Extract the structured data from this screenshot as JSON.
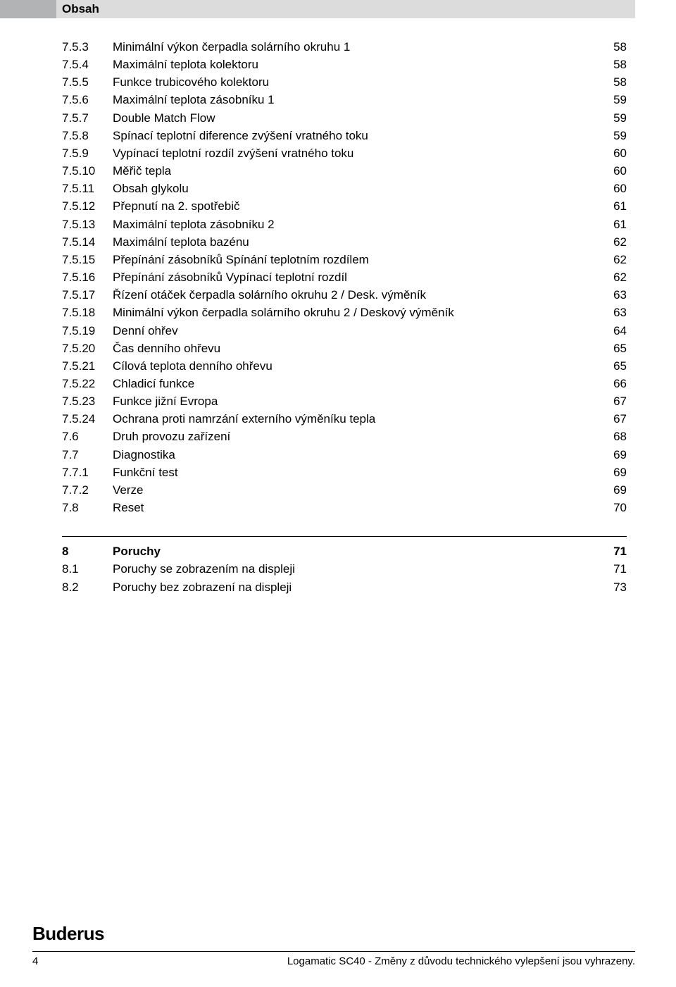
{
  "header": {
    "title": "Obsah"
  },
  "toc_section1": [
    {
      "num": "7.5.3",
      "title": "Minimální výkon čerpadla solárního okruhu 1",
      "page": "58"
    },
    {
      "num": "7.5.4",
      "title": "Maximální teplota kolektoru",
      "page": "58"
    },
    {
      "num": "7.5.5",
      "title": "Funkce trubicového kolektoru",
      "page": "58"
    },
    {
      "num": "7.5.6",
      "title": "Maximální teplota zásobníku 1",
      "page": "59"
    },
    {
      "num": "7.5.7",
      "title": "Double Match Flow",
      "page": "59"
    },
    {
      "num": "7.5.8",
      "title": "Spínací teplotní diference zvýšení vratného toku",
      "page": "59"
    },
    {
      "num": "7.5.9",
      "title": "Vypínací teplotní rozdíl zvýšení vratného toku",
      "page": "60"
    },
    {
      "num": "7.5.10",
      "title": "Měřič tepla",
      "page": "60"
    },
    {
      "num": "7.5.11",
      "title": "Obsah glykolu",
      "page": "60"
    },
    {
      "num": "7.5.12",
      "title": "Přepnutí na 2. spotřebič",
      "page": "61"
    },
    {
      "num": "7.5.13",
      "title": "Maximální teplota zásobníku 2",
      "page": "61"
    },
    {
      "num": "7.5.14",
      "title": "Maximální teplota bazénu",
      "page": "62"
    },
    {
      "num": "7.5.15",
      "title": "Přepínání zásobníků Spínání teplotním rozdílem",
      "page": "62"
    },
    {
      "num": "7.5.16",
      "title": "Přepínání zásobníků Vypínací teplotní rozdíl",
      "page": "62"
    },
    {
      "num": "7.5.17",
      "title": "Řízení otáček čerpadla solárního okruhu 2 / Desk. výměník",
      "page": "63"
    },
    {
      "num": "7.5.18",
      "title": "Minimální výkon čerpadla solárního okruhu 2 / Deskový výměník",
      "page": "63"
    },
    {
      "num": "7.5.19",
      "title": "Denní ohřev",
      "page": "64"
    },
    {
      "num": "7.5.20",
      "title": "Čas denního ohřevu",
      "page": "65"
    },
    {
      "num": "7.5.21",
      "title": "Cílová teplota denního ohřevu",
      "page": "65"
    },
    {
      "num": "7.5.22",
      "title": "Chladicí funkce",
      "page": "66"
    },
    {
      "num": "7.5.23",
      "title": "Funkce jižní Evropa",
      "page": "67"
    },
    {
      "num": "7.5.24",
      "title": "Ochrana proti namrzání externího výměníku tepla",
      "page": "67"
    },
    {
      "num": "7.6",
      "title": "Druh provozu zařízení",
      "page": "68"
    },
    {
      "num": "7.7",
      "title": "Diagnostika",
      "page": "69"
    },
    {
      "num": "7.7.1",
      "title": "Funkční test",
      "page": "69"
    },
    {
      "num": "7.7.2",
      "title": "Verze",
      "page": "69"
    },
    {
      "num": "7.8",
      "title": "Reset",
      "page": "70"
    }
  ],
  "toc_section2": [
    {
      "num": "8",
      "title": "Poruchy",
      "page": "71",
      "bold": true
    },
    {
      "num": "8.1",
      "title": "Poruchy se zobrazením na displeji",
      "page": "71"
    },
    {
      "num": "8.2",
      "title": "Poruchy bez zobrazení na displeji",
      "page": "73"
    }
  ],
  "footer": {
    "brand": "Buderus",
    "page_number": "4",
    "note": "Logamatic SC40 - Změny z důvodu technického vylepšení jsou vyhrazeny."
  },
  "colors": {
    "tab": "#b1b3b4",
    "header_bg": "#dcdcdc",
    "text": "#000000",
    "background": "#ffffff"
  },
  "typography": {
    "body_fontsize": 17,
    "header_fontsize": 17,
    "brand_fontsize": 26,
    "footer_fontsize": 15
  }
}
